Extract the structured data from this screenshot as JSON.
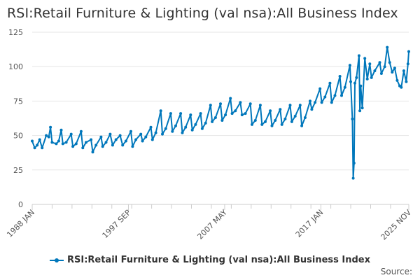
{
  "chart_data": {
    "type": "line",
    "title": "RSI:Retail Furniture & Lighting (val nsa):All Business Index",
    "xlabel": "",
    "ylabel": "",
    "ylim": [
      0,
      125
    ],
    "yticks": [
      0,
      25,
      50,
      75,
      100,
      125
    ],
    "x_range": [
      "1988-01",
      "2025-11"
    ],
    "xtick_labels": [
      "1988 JAN",
      "1997 SEP",
      "2007 MAY",
      "2017 JAN",
      "2025 NOV"
    ],
    "xtick_dates": [
      "1988-01",
      "1997-09",
      "2007-05",
      "2017-01",
      "2025-11"
    ],
    "grid": "horizontal",
    "legend_position": "bottom",
    "series": [
      {
        "name": "RSI:Retail Furniture & Lighting (val nsa):All Business Index",
        "color": "#0077bb",
        "points": [
          [
            "1988-01",
            46
          ],
          [
            "1988-04",
            41
          ],
          [
            "1988-07",
            43
          ],
          [
            "1988-10",
            47
          ],
          [
            "1989-01",
            41
          ],
          [
            "1989-06",
            50
          ],
          [
            "1989-09",
            49
          ],
          [
            "1989-11",
            56
          ],
          [
            "1990-01",
            45
          ],
          [
            "1990-06",
            44
          ],
          [
            "1990-09",
            46
          ],
          [
            "1990-12",
            54
          ],
          [
            "1991-02",
            44
          ],
          [
            "1991-06",
            45
          ],
          [
            "1991-12",
            51
          ],
          [
            "1992-02",
            42
          ],
          [
            "1992-06",
            44
          ],
          [
            "1992-12",
            53
          ],
          [
            "1993-02",
            41
          ],
          [
            "1993-06",
            45
          ],
          [
            "1993-12",
            47
          ],
          [
            "1994-02",
            38
          ],
          [
            "1994-06",
            43
          ],
          [
            "1994-12",
            49
          ],
          [
            "1995-02",
            42
          ],
          [
            "1995-06",
            45
          ],
          [
            "1995-11",
            51
          ],
          [
            "1996-02",
            43
          ],
          [
            "1996-06",
            47
          ],
          [
            "1996-11",
            50
          ],
          [
            "1997-02",
            43
          ],
          [
            "1997-06",
            46
          ],
          [
            "1997-12",
            53
          ],
          [
            "1998-02",
            42
          ],
          [
            "1998-06",
            47
          ],
          [
            "1998-12",
            51
          ],
          [
            "1999-02",
            46
          ],
          [
            "1999-06",
            49
          ],
          [
            "1999-12",
            56
          ],
          [
            "2000-02",
            47
          ],
          [
            "2000-06",
            52
          ],
          [
            "2000-12",
            68
          ],
          [
            "2001-02",
            51
          ],
          [
            "2001-06",
            55
          ],
          [
            "2001-12",
            66
          ],
          [
            "2002-02",
            53
          ],
          [
            "2002-06",
            57
          ],
          [
            "2002-12",
            66
          ],
          [
            "2003-02",
            52
          ],
          [
            "2003-06",
            56
          ],
          [
            "2003-12",
            65
          ],
          [
            "2004-02",
            54
          ],
          [
            "2004-06",
            58
          ],
          [
            "2004-12",
            66
          ],
          [
            "2005-02",
            55
          ],
          [
            "2005-06",
            59
          ],
          [
            "2005-12",
            72
          ],
          [
            "2006-02",
            60
          ],
          [
            "2006-06",
            63
          ],
          [
            "2006-12",
            73
          ],
          [
            "2007-02",
            61
          ],
          [
            "2007-06",
            65
          ],
          [
            "2007-12",
            77
          ],
          [
            "2008-02",
            66
          ],
          [
            "2008-06",
            68
          ],
          [
            "2008-12",
            74
          ],
          [
            "2009-02",
            65
          ],
          [
            "2009-06",
            66
          ],
          [
            "2009-12",
            73
          ],
          [
            "2010-02",
            58
          ],
          [
            "2010-06",
            61
          ],
          [
            "2010-12",
            72
          ],
          [
            "2011-02",
            58
          ],
          [
            "2011-06",
            60
          ],
          [
            "2011-12",
            68
          ],
          [
            "2012-02",
            57
          ],
          [
            "2012-06",
            61
          ],
          [
            "2012-12",
            69
          ],
          [
            "2013-02",
            58
          ],
          [
            "2013-06",
            62
          ],
          [
            "2013-12",
            72
          ],
          [
            "2014-02",
            60
          ],
          [
            "2014-06",
            64
          ],
          [
            "2014-12",
            72
          ],
          [
            "2015-02",
            57
          ],
          [
            "2015-06",
            63
          ],
          [
            "2015-12",
            75
          ],
          [
            "2016-02",
            69
          ],
          [
            "2016-06",
            74
          ],
          [
            "2016-12",
            84
          ],
          [
            "2017-02",
            74
          ],
          [
            "2017-06",
            78
          ],
          [
            "2017-12",
            88
          ],
          [
            "2018-02",
            74
          ],
          [
            "2018-06",
            79
          ],
          [
            "2018-12",
            93
          ],
          [
            "2019-02",
            79
          ],
          [
            "2019-06",
            85
          ],
          [
            "2019-12",
            101
          ],
          [
            "2020-01",
            89
          ],
          [
            "2020-03",
            62
          ],
          [
            "2020-04",
            19
          ],
          [
            "2020-05",
            30
          ],
          [
            "2020-06",
            88
          ],
          [
            "2020-08",
            92
          ],
          [
            "2020-11",
            108
          ],
          [
            "2020-12",
            68
          ],
          [
            "2021-01",
            86
          ],
          [
            "2021-03",
            70
          ],
          [
            "2021-06",
            106
          ],
          [
            "2021-09",
            91
          ],
          [
            "2021-12",
            102
          ],
          [
            "2022-02",
            92
          ],
          [
            "2022-06",
            97
          ],
          [
            "2022-12",
            103
          ],
          [
            "2023-02",
            95
          ],
          [
            "2023-06",
            100
          ],
          [
            "2023-09",
            114
          ],
          [
            "2023-12",
            103
          ],
          [
            "2024-03",
            96
          ],
          [
            "2024-06",
            99
          ],
          [
            "2024-09",
            90
          ],
          [
            "2024-12",
            86
          ],
          [
            "2025-02",
            85
          ],
          [
            "2025-05",
            97
          ],
          [
            "2025-08",
            89
          ],
          [
            "2025-10",
            102
          ],
          [
            "2025-11",
            111
          ]
        ]
      }
    ]
  },
  "legend": {
    "label": "RSI:Retail Furniture & Lighting (val nsa):All Business Index"
  },
  "footer": {
    "source": "Source:"
  }
}
